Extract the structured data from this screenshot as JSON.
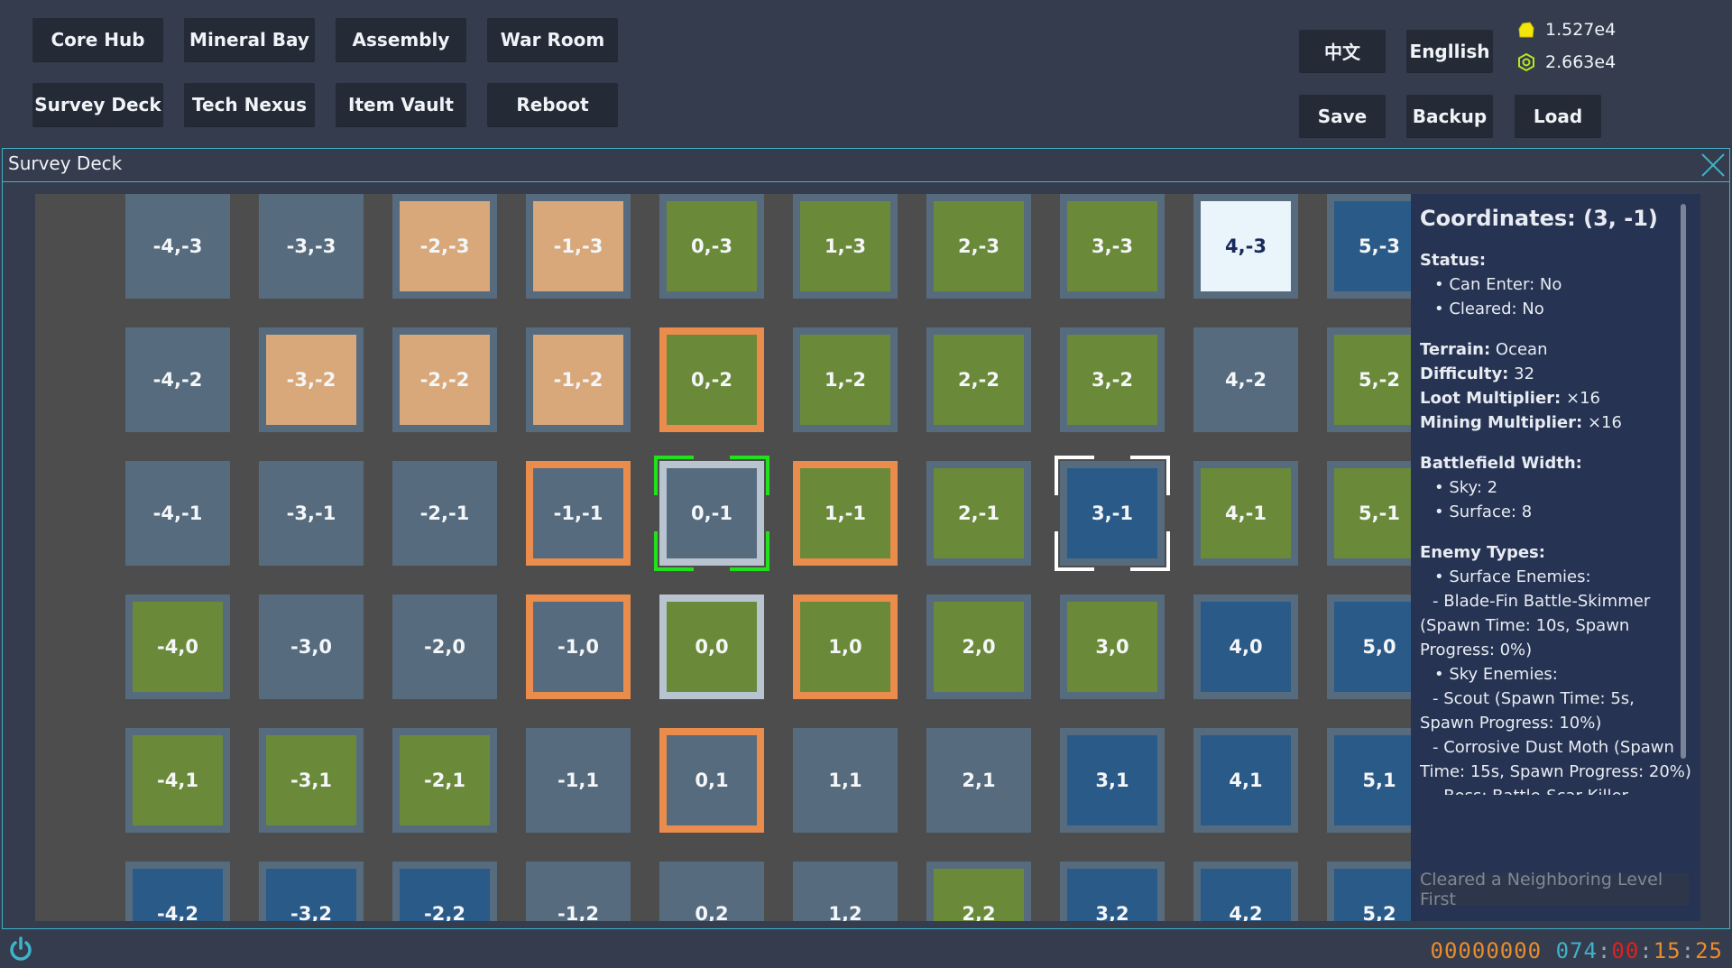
{
  "nav": [
    {
      "label": "Core Hub"
    },
    {
      "label": "Mineral Bay"
    },
    {
      "label": "Assembly"
    },
    {
      "label": "War Room"
    },
    {
      "label": "Survey Deck"
    },
    {
      "label": "Tech Nexus"
    },
    {
      "label": "Item Vault"
    },
    {
      "label": "Reboot"
    }
  ],
  "lang": {
    "chinese": "中文",
    "english": "Engllish"
  },
  "file": {
    "save": "Save",
    "backup": "Backup",
    "load": "Load"
  },
  "resources": {
    "gold": {
      "value": "1.527e4",
      "icon": "gold-nugget-icon",
      "color": "#f5e60a"
    },
    "gear": {
      "value": "2.663e4",
      "icon": "hex-gear-icon",
      "color": "#b6e61e"
    }
  },
  "window": {
    "title": "Survey Deck"
  },
  "colors": {
    "ocean": "#2a5a88",
    "grass": "#6a8a3a",
    "sand": "#d8a87a",
    "stone": "#566b7e",
    "unlocked_border": "#e98c4c",
    "current_border": "#b8c4cf",
    "highlight": "#eaf4fb",
    "selection": "#ffffff",
    "player_marker": "#22e01e"
  },
  "map": {
    "rows": [
      [
        [
          "-4,-3",
          "stone"
        ],
        [
          "-3,-3",
          "stone"
        ],
        [
          "-2,-3",
          "sand"
        ],
        [
          "-1,-3",
          "sand"
        ],
        [
          "0,-3",
          "grass"
        ],
        [
          "1,-3",
          "grass"
        ],
        [
          "2,-3",
          "grass"
        ],
        [
          "3,-3",
          "grass"
        ],
        [
          "4,-3",
          "highlight"
        ],
        [
          "5,-3",
          "ocean"
        ]
      ],
      [
        [
          "-4,-2",
          "stone"
        ],
        [
          "-3,-2",
          "sand"
        ],
        [
          "-2,-2",
          "sand"
        ],
        [
          "-1,-2",
          "sand"
        ],
        [
          "0,-2",
          "grass",
          "orange"
        ],
        [
          "1,-2",
          "grass"
        ],
        [
          "2,-2",
          "grass"
        ],
        [
          "3,-2",
          "grass"
        ],
        [
          "4,-2",
          "stone"
        ],
        [
          "5,-2",
          "grass"
        ]
      ],
      [
        [
          "-4,-1",
          "stone"
        ],
        [
          "-3,-1",
          "stone"
        ],
        [
          "-2,-1",
          "stone"
        ],
        [
          "-1,-1",
          "stone",
          "orange"
        ],
        [
          "0,-1",
          "stone",
          "player"
        ],
        [
          "1,-1",
          "grass",
          "orange"
        ],
        [
          "2,-1",
          "grass"
        ],
        [
          "3,-1",
          "ocean",
          "selected"
        ],
        [
          "4,-1",
          "grass"
        ],
        [
          "5,-1",
          "grass"
        ]
      ],
      [
        [
          "-4,0",
          "grass"
        ],
        [
          "-3,0",
          "stone"
        ],
        [
          "-2,0",
          "stone"
        ],
        [
          "-1,0",
          "stone",
          "orange"
        ],
        [
          "0,0",
          "grass",
          "current"
        ],
        [
          "1,0",
          "grass",
          "orange"
        ],
        [
          "2,0",
          "grass"
        ],
        [
          "3,0",
          "grass"
        ],
        [
          "4,0",
          "ocean"
        ],
        [
          "5,0",
          "ocean"
        ]
      ],
      [
        [
          "-4,1",
          "grass"
        ],
        [
          "-3,1",
          "grass"
        ],
        [
          "-2,1",
          "grass"
        ],
        [
          "-1,1",
          "stone"
        ],
        [
          "0,1",
          "stone",
          "orange"
        ],
        [
          "1,1",
          "stone"
        ],
        [
          "2,1",
          "stone"
        ],
        [
          "3,1",
          "ocean"
        ],
        [
          "4,1",
          "ocean"
        ],
        [
          "5,1",
          "ocean"
        ]
      ],
      [
        [
          "-4,2",
          "ocean"
        ],
        [
          "-3,2",
          "ocean"
        ],
        [
          "-2,2",
          "ocean"
        ],
        [
          "-1,2",
          "stone"
        ],
        [
          "0,2",
          "stone"
        ],
        [
          "1,2",
          "stone"
        ],
        [
          "2,2",
          "grass"
        ],
        [
          "3,2",
          "ocean"
        ],
        [
          "4,2",
          "ocean"
        ],
        [
          "5,2",
          "ocean"
        ]
      ]
    ]
  },
  "panel": {
    "coords": "Coordinates: (3, -1)",
    "status_h": "Status:",
    "can_enter": "Can Enter: No",
    "cleared": "Cleared: No",
    "terrain_l": "Terrain:",
    "terrain_v": "Ocean",
    "difficulty_l": "Difficulty:",
    "difficulty_v": "32",
    "loot_l": "Loot Multiplier:",
    "loot_v": "×16",
    "mining_l": "Mining Multiplier:",
    "mining_v": "×16",
    "bw_h": "Battlefield Width:",
    "sky": "Sky: 2",
    "surface": "Surface: 8",
    "enemy_h": "Enemy Types:",
    "surface_enemies": "Surface Enemies:",
    "e1": "- Blade-Fin Battle-Skimmer (Spawn Time: 10s, Spawn Progress: 0%)",
    "sky_enemies": "Sky Enemies:",
    "e2": "- Scout (Spawn Time: 5s, Spawn Progress: 10%)",
    "e3": "- Corrosive Dust Moth (Spawn Time: 15s, Spawn Progress: 20%)",
    "boss": "- Boss: Battle-Scar Killer",
    "clear_btn": "Cleared a Neighboring Level First"
  },
  "clock": {
    "a": "00000000",
    "b": "074",
    "c": "00",
    "d": "15",
    "e": "25"
  }
}
